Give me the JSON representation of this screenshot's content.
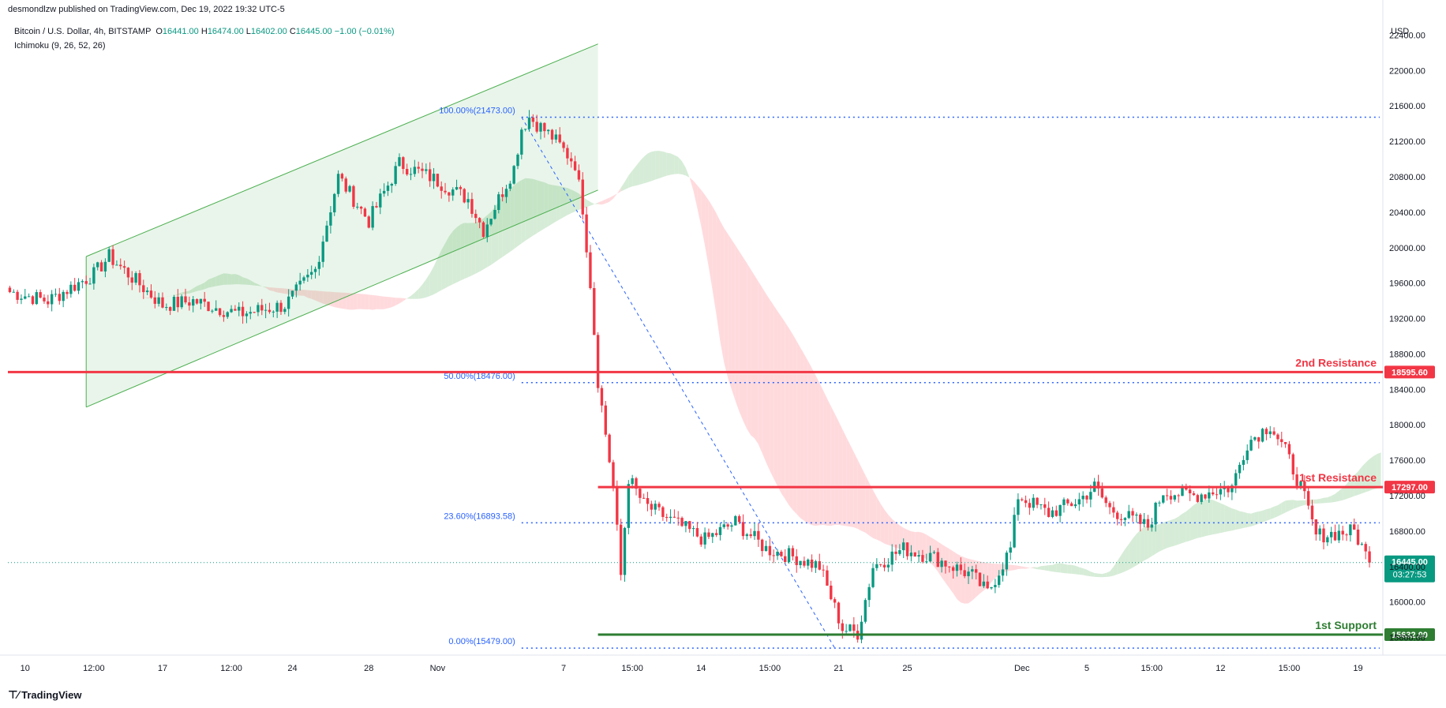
{
  "header": {
    "published": "desmondlzw published on TradingView.com, Dec 19, 2022 19:32 UTC-5",
    "symbol": "Bitcoin / U.S. Dollar, 4h, BITSTAMP",
    "open_label": "O",
    "open": "16441.00",
    "high_label": "H",
    "high": "16474.00",
    "low_label": "L",
    "low": "16402.00",
    "close_label": "C",
    "close": "16445.00",
    "change": "−1.00 (−0.01%)",
    "indicator": "Ichimoku (9, 26, 52, 26)",
    "currency": "USD"
  },
  "brand": {
    "icon": "tradingview-logo-icon",
    "name": "TradingView"
  },
  "colors": {
    "up": "#089981",
    "down": "#f23645",
    "resistance": "#f23645",
    "support": "#2e7d32",
    "fib": "#2962ff",
    "cloud_green": "#c8e6c9",
    "cloud_red": "#ffcdd2",
    "channel": "#4caf50"
  },
  "chart_data": {
    "type": "candlestick",
    "ylim": [
      15400,
      22600
    ],
    "y_ticks": [
      "22400.00",
      "22000.00",
      "21600.00",
      "21200.00",
      "20800.00",
      "20400.00",
      "20000.00",
      "19600.00",
      "19200.00",
      "18800.00",
      "18400.00",
      "18000.00",
      "17600.00",
      "17200.00",
      "16800.00",
      "16400.00",
      "16000.00",
      "15600.00"
    ],
    "x_ticks": [
      "10",
      "12:00",
      "17",
      "12:00",
      "24",
      "28",
      "Nov",
      "7",
      "15:00",
      "14",
      "15:00",
      "21",
      "25",
      "Dec",
      "5",
      "15:00",
      "12",
      "15:00",
      "19"
    ],
    "x_tick_index": [
      4,
      22,
      40,
      58,
      74,
      94,
      112,
      145,
      163,
      181,
      199,
      217,
      235,
      265,
      282,
      299,
      317,
      335,
      353
    ],
    "n_bars": 360,
    "key_points": [
      [
        0,
        19500
      ],
      [
        10,
        19400
      ],
      [
        22,
        19700
      ],
      [
        26,
        19900
      ],
      [
        40,
        19350
      ],
      [
        48,
        19400
      ],
      [
        60,
        19250
      ],
      [
        72,
        19350
      ],
      [
        80,
        19750
      ],
      [
        86,
        20800
      ],
      [
        94,
        20300
      ],
      [
        102,
        20950
      ],
      [
        110,
        20800
      ],
      [
        120,
        20550
      ],
      [
        124,
        20200
      ],
      [
        132,
        20900
      ],
      [
        134,
        21350
      ],
      [
        136,
        21473
      ],
      [
        142,
        21250
      ],
      [
        148,
        20950
      ],
      [
        150,
        20450
      ],
      [
        152,
        19600
      ],
      [
        154,
        18500
      ],
      [
        158,
        17300
      ],
      [
        160,
        16300
      ],
      [
        162,
        17400
      ],
      [
        166,
        17100
      ],
      [
        174,
        16900
      ],
      [
        182,
        16700
      ],
      [
        190,
        16900
      ],
      [
        198,
        16600
      ],
      [
        206,
        16500
      ],
      [
        212,
        16400
      ],
      [
        218,
        15700
      ],
      [
        222,
        15650
      ],
      [
        226,
        16400
      ],
      [
        234,
        16600
      ],
      [
        242,
        16500
      ],
      [
        252,
        16300
      ],
      [
        256,
        16100
      ],
      [
        262,
        16600
      ],
      [
        264,
        17200
      ],
      [
        272,
        17000
      ],
      [
        280,
        17150
      ],
      [
        284,
        17300
      ],
      [
        288,
        17050
      ],
      [
        298,
        16850
      ],
      [
        302,
        17250
      ],
      [
        310,
        17200
      ],
      [
        320,
        17300
      ],
      [
        324,
        17800
      ],
      [
        330,
        18000
      ],
      [
        334,
        17700
      ],
      [
        338,
        17300
      ],
      [
        342,
        16750
      ],
      [
        352,
        16800
      ],
      [
        356,
        16445
      ]
    ],
    "horizontal_lines": [
      {
        "label": "2nd Resistance",
        "value": 18595.6,
        "tag": "18595.60",
        "color": "#f23645"
      },
      {
        "label": "1st Resistance",
        "value": 17297.0,
        "tag": "17297.00",
        "color": "#f23645"
      },
      {
        "label": "1st Support",
        "value": 15632.0,
        "tag": "15632.00",
        "color": "#2e7d32"
      }
    ],
    "fib_levels": [
      {
        "label": "100.00%(21473.00)",
        "value": 21473.0
      },
      {
        "label": "50.00%(18476.00)",
        "value": 18476.0
      },
      {
        "label": "23.60%(16893.58)",
        "value": 16893.58
      },
      {
        "label": "0.00%(15479.00)",
        "value": 15479.0
      }
    ],
    "fib_range_bars": [
      134,
      360
    ],
    "fib_trend": [
      [
        134,
        21473
      ],
      [
        216,
        15479
      ]
    ],
    "channel": {
      "lower": [
        [
          20,
          18200
        ],
        [
          154,
          20650
        ]
      ],
      "upper": [
        [
          20,
          19900
        ],
        [
          154,
          22300
        ]
      ]
    },
    "last_price": {
      "value": 16445.0,
      "tag": "16445.00",
      "countdown": "03:27:53"
    }
  }
}
